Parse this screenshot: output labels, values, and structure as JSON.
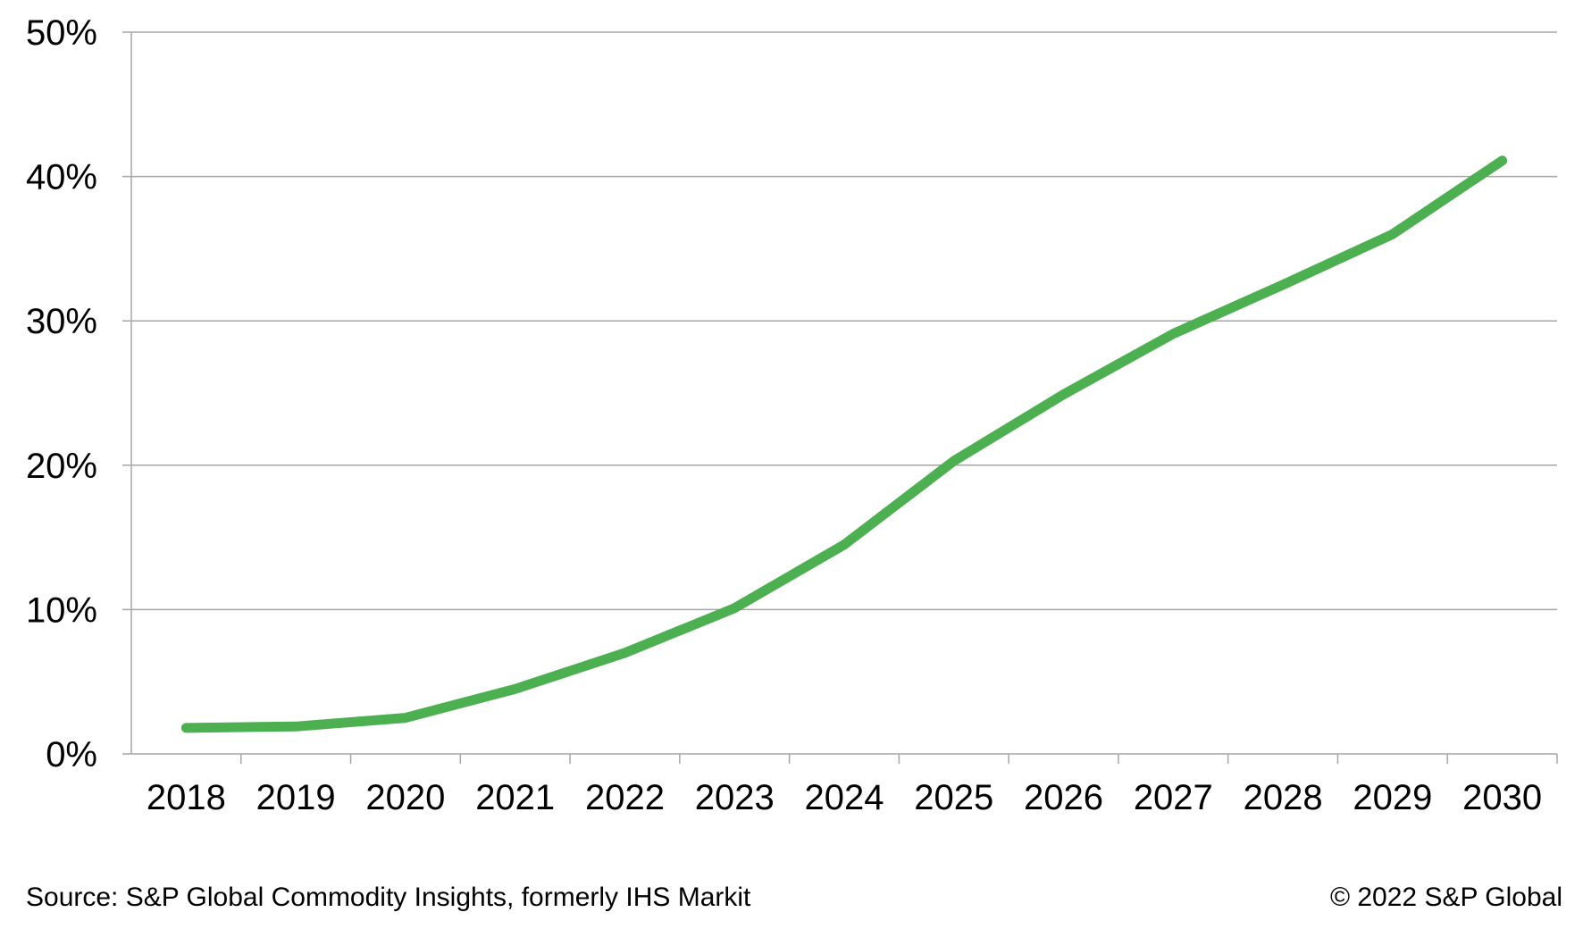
{
  "chart_data": {
    "type": "line",
    "title": "",
    "xlabel": "",
    "ylabel": "",
    "categories": [
      "2018",
      "2019",
      "2020",
      "2021",
      "2022",
      "2023",
      "2024",
      "2025",
      "2026",
      "2027",
      "2028",
      "2029",
      "2030"
    ],
    "series": [
      {
        "values": [
          1.8,
          1.9,
          2.5,
          4.5,
          7.0,
          10.1,
          14.5,
          20.3,
          24.9,
          29.1,
          32.5,
          36.0,
          41.1
        ],
        "color": "#4caf50"
      }
    ],
    "ylim": [
      0,
      50
    ],
    "yticks": [
      0,
      10,
      20,
      30,
      40,
      50
    ],
    "ytick_labels": [
      "0%",
      "10%",
      "20%",
      "30%",
      "40%",
      "50%"
    ],
    "grid": true,
    "legend": "none",
    "gridline_color": "#a6a6a6"
  },
  "footer": {
    "source": "Source: S&P Global Commodity Insights, formerly IHS Markit",
    "copyright": "© 2022 S&P Global"
  }
}
